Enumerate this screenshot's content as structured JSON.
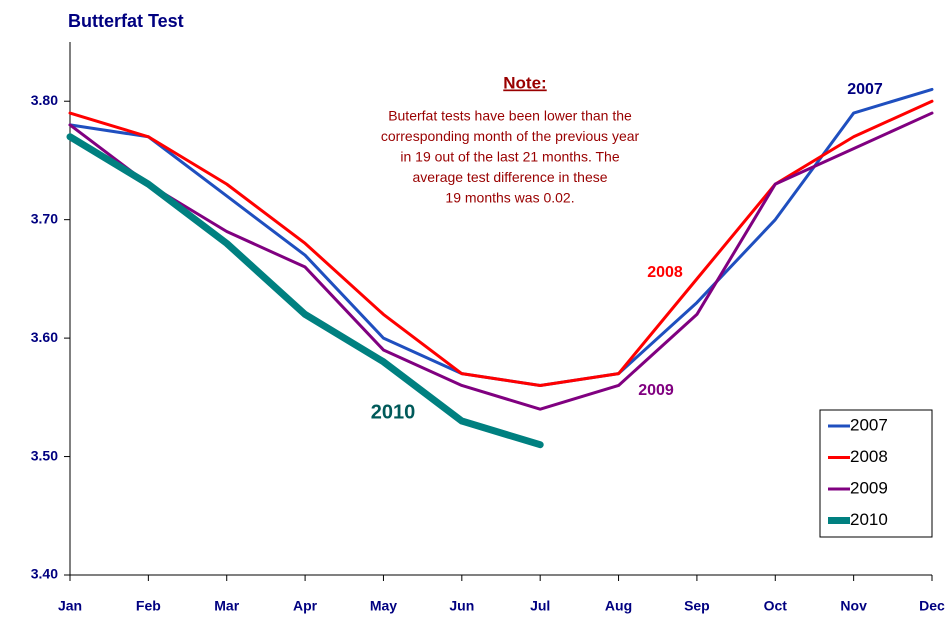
{
  "chart_data": {
    "type": "line",
    "title": "Butterfat Test",
    "categories": [
      "Jan",
      "Feb",
      "Mar",
      "Apr",
      "May",
      "Jun",
      "Jul",
      "Aug",
      "Sep",
      "Oct",
      "Nov",
      "Dec"
    ],
    "series": [
      {
        "name": "2007",
        "color": "#1f4fbf",
        "width": 3,
        "values": [
          3.78,
          3.77,
          3.72,
          3.67,
          3.6,
          3.57,
          3.56,
          3.57,
          3.63,
          3.7,
          3.79,
          3.81
        ]
      },
      {
        "name": "2008",
        "color": "#ff0000",
        "width": 3,
        "values": [
          3.79,
          3.77,
          3.73,
          3.68,
          3.62,
          3.57,
          3.56,
          3.57,
          3.65,
          3.73,
          3.77,
          3.8
        ]
      },
      {
        "name": "2009",
        "color": "#800080",
        "width": 3,
        "values": [
          3.78,
          3.73,
          3.69,
          3.66,
          3.59,
          3.56,
          3.54,
          3.56,
          3.62,
          3.73,
          3.76,
          3.79
        ]
      },
      {
        "name": "2010",
        "color": "#008080",
        "width": 7,
        "values": [
          3.77,
          3.73,
          3.68,
          3.62,
          3.58,
          3.53,
          3.51,
          null,
          null,
          null,
          null,
          null
        ]
      }
    ],
    "ylim": [
      3.4,
      3.85
    ],
    "yticks": [
      {
        "value": 3.4,
        "label": "3.40"
      },
      {
        "value": 3.5,
        "label": "3.50"
      },
      {
        "value": 3.6,
        "label": "3.60"
      },
      {
        "value": 3.7,
        "label": "3.70"
      },
      {
        "value": 3.8,
        "label": "3.80"
      }
    ],
    "legend": "lower right",
    "annotations": [
      {
        "text": "2007",
        "color": "#000080"
      },
      {
        "text": "2008",
        "color": "#ff0000"
      },
      {
        "text": "2009",
        "color": "#800080"
      },
      {
        "text": "2010",
        "color": "#005a5a"
      }
    ],
    "note": {
      "title": "Note:",
      "lines": [
        "Buterfat tests have been lower than the",
        "corresponding month of the previous year",
        "in 19 out of the last 21 months.  The",
        "average test difference in these",
        "19 months was 0.02."
      ]
    }
  }
}
